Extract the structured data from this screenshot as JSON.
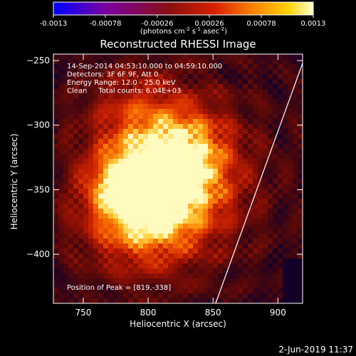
{
  "colorbar": {
    "ticks": [
      "-0.0013",
      "-0.00078",
      "-0.00026",
      "0.00026",
      "0.00078",
      "0.0013"
    ],
    "tick_values": [
      -0.0013,
      -0.00078,
      -0.00026,
      0.00026,
      0.00078,
      0.0013
    ],
    "range": [
      -0.0013,
      0.0013
    ],
    "units_prefix": "(photons cm",
    "units_exp1": "-2",
    "units_mid": " s",
    "units_exp2": "-1",
    "units_mid2": " asec",
    "units_exp3": "-2",
    "units_suffix": ")"
  },
  "chart_data": {
    "type": "heatmap",
    "title": "Reconstructed RHESSI Image",
    "xlabel": "Heliocentric X (arcsec)",
    "ylabel": "Heliocentric Y (arcsec)",
    "xlim": [
      727,
      919
    ],
    "ylim": [
      -438,
      -245
    ],
    "xticks": [
      750,
      800,
      850,
      900
    ],
    "yticks": [
      -250,
      -300,
      -350,
      -400
    ],
    "xtick_labels": [
      "750",
      "800",
      "850",
      "900"
    ],
    "ytick_labels": [
      "−250",
      "−300",
      "−350",
      "−400"
    ],
    "annotations": [
      "14-Sep-2014 04:53:10.000 to 04:59:10.000",
      "Detectors: 3F 6F 9F, Att 0",
      "Energy Range: 12.0 - 25.0 keV",
      "Clean     Total counts: 6.04E+03"
    ],
    "peak_label": "Position of Peak = [819,-338]",
    "peak": [
      819,
      -338
    ],
    "limb_points": [
      [
        852,
        -438
      ],
      [
        919,
        -252
      ]
    ],
    "colormap": "red-temperature",
    "grid": false
  },
  "footer": {
    "timestamp": "2-Jun-2019 11:37"
  },
  "colors": {
    "background": "#000000",
    "text": "#ffffff",
    "limb": "#ffffff"
  }
}
